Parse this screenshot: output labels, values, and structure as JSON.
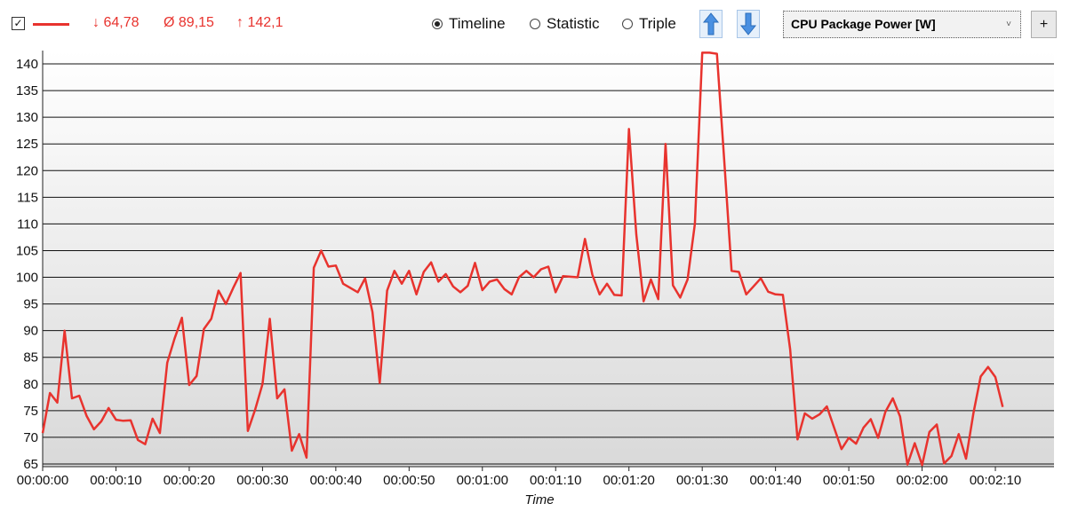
{
  "toolbar": {
    "checkbox_mark": "✓",
    "min_value": "↓ 64,78",
    "avg_value": "Ø 89,15",
    "max_value": "↑ 142,1",
    "radio_timeline": "Timeline",
    "radio_statistic": "Statistic",
    "radio_triple": "Triple",
    "selected_metric": "CPU Package Power [W]",
    "add_label": "+",
    "series_color": "#e8332e"
  },
  "chart_data": {
    "type": "line",
    "xlabel": "Time",
    "ylabel": "",
    "title": "",
    "grid": true,
    "ylim": [
      64.5,
      142.5
    ],
    "xlim": [
      0,
      138
    ],
    "y_ticks": [
      65,
      70,
      75,
      80,
      85,
      90,
      95,
      100,
      105,
      110,
      115,
      120,
      125,
      130,
      135,
      140
    ],
    "x_ticks": [
      {
        "t": 0,
        "label": "00:00:00"
      },
      {
        "t": 10,
        "label": "00:00:10"
      },
      {
        "t": 20,
        "label": "00:00:20"
      },
      {
        "t": 30,
        "label": "00:00:30"
      },
      {
        "t": 40,
        "label": "00:00:40"
      },
      {
        "t": 50,
        "label": "00:00:50"
      },
      {
        "t": 60,
        "label": "00:01:00"
      },
      {
        "t": 70,
        "label": "00:01:10"
      },
      {
        "t": 80,
        "label": "00:01:20"
      },
      {
        "t": 90,
        "label": "00:01:30"
      },
      {
        "t": 100,
        "label": "00:01:40"
      },
      {
        "t": 110,
        "label": "00:01:50"
      },
      {
        "t": 120,
        "label": "00:02:00"
      },
      {
        "t": 130,
        "label": "00:02:10"
      }
    ],
    "series": [
      {
        "color": "#e8332e",
        "points": [
          [
            0,
            70.8
          ],
          [
            1,
            78.3
          ],
          [
            2,
            76.5
          ],
          [
            3,
            90
          ],
          [
            4,
            77.3
          ],
          [
            5,
            77.8
          ],
          [
            6,
            74
          ],
          [
            7,
            71.5
          ],
          [
            8,
            73
          ],
          [
            9,
            75.5
          ],
          [
            10,
            73.3
          ],
          [
            11,
            73.1
          ],
          [
            12,
            73.2
          ],
          [
            13,
            69.5
          ],
          [
            14,
            68.7
          ],
          [
            15,
            73.5
          ],
          [
            16,
            70.8
          ],
          [
            17,
            84
          ],
          [
            18,
            88.5
          ],
          [
            19,
            92.4
          ],
          [
            20,
            79.8
          ],
          [
            21,
            81.5
          ],
          [
            22,
            90.3
          ],
          [
            23,
            92.2
          ],
          [
            24,
            97.5
          ],
          [
            25,
            95
          ],
          [
            26,
            98
          ],
          [
            27,
            100.8
          ],
          [
            28,
            71.2
          ],
          [
            29,
            75.2
          ],
          [
            30,
            80
          ],
          [
            31,
            92.2
          ],
          [
            32,
            77.3
          ],
          [
            33,
            79
          ],
          [
            34,
            67.5
          ],
          [
            35,
            70.6
          ],
          [
            36,
            66.2
          ],
          [
            37,
            101.8
          ],
          [
            38,
            105
          ],
          [
            39,
            102
          ],
          [
            40,
            102.2
          ],
          [
            41,
            98.8
          ],
          [
            42,
            98
          ],
          [
            43,
            97.2
          ],
          [
            44,
            99.8
          ],
          [
            45,
            93.5
          ],
          [
            46,
            80.2
          ],
          [
            47,
            97.5
          ],
          [
            48,
            101.2
          ],
          [
            49,
            98.8
          ],
          [
            50,
            101.2
          ],
          [
            51,
            96.8
          ],
          [
            52,
            101
          ],
          [
            53,
            102.8
          ],
          [
            54,
            99.2
          ],
          [
            55,
            100.6
          ],
          [
            56,
            98.3
          ],
          [
            57,
            97.2
          ],
          [
            58,
            98.4
          ],
          [
            59,
            102.7
          ],
          [
            60,
            97.6
          ],
          [
            61,
            99.2
          ],
          [
            62,
            99.6
          ],
          [
            63,
            97.8
          ],
          [
            64,
            96.8
          ],
          [
            65,
            100
          ],
          [
            66,
            101.2
          ],
          [
            67,
            100
          ],
          [
            68,
            101.5
          ],
          [
            69,
            102
          ],
          [
            70,
            97.2
          ],
          [
            71,
            100.2
          ],
          [
            72,
            100.1
          ],
          [
            73,
            100
          ],
          [
            74,
            107.2
          ],
          [
            75,
            100.5
          ],
          [
            76,
            96.8
          ],
          [
            77,
            98.8
          ],
          [
            78,
            96.7
          ],
          [
            79,
            96.6
          ],
          [
            80,
            127.8
          ],
          [
            81,
            108
          ],
          [
            82,
            95.5
          ],
          [
            83,
            99.6
          ],
          [
            84,
            95.9
          ],
          [
            85,
            125
          ],
          [
            86,
            98.5
          ],
          [
            87,
            96.2
          ],
          [
            88,
            99.6
          ],
          [
            89,
            110
          ],
          [
            90,
            142.1
          ],
          [
            91,
            142.1
          ],
          [
            92,
            141.9
          ],
          [
            93,
            122
          ],
          [
            94,
            101.2
          ],
          [
            95,
            101
          ],
          [
            96,
            96.8
          ],
          [
            97,
            98.3
          ],
          [
            98,
            99.8
          ],
          [
            99,
            97.3
          ],
          [
            100,
            96.8
          ],
          [
            101,
            96.7
          ],
          [
            102,
            86.5
          ],
          [
            103,
            69.6
          ],
          [
            104,
            74.5
          ],
          [
            105,
            73.5
          ],
          [
            106,
            74.3
          ],
          [
            107,
            75.8
          ],
          [
            108,
            71.8
          ],
          [
            109,
            67.8
          ],
          [
            110,
            69.9
          ],
          [
            111,
            68.8
          ],
          [
            112,
            71.8
          ],
          [
            113,
            73.4
          ],
          [
            114,
            69.9
          ],
          [
            115,
            74.8
          ],
          [
            116,
            77.3
          ],
          [
            117,
            73.9
          ],
          [
            118,
            64.9
          ],
          [
            119,
            68.9
          ],
          [
            120,
            64.8
          ],
          [
            121,
            71
          ],
          [
            122,
            72.4
          ],
          [
            123,
            65.1
          ],
          [
            124,
            66.5
          ],
          [
            125,
            70.6
          ],
          [
            126,
            66
          ],
          [
            127,
            74.5
          ],
          [
            128,
            81.4
          ],
          [
            129,
            83.2
          ],
          [
            130,
            81.3
          ],
          [
            131,
            75.7
          ]
        ]
      }
    ]
  }
}
